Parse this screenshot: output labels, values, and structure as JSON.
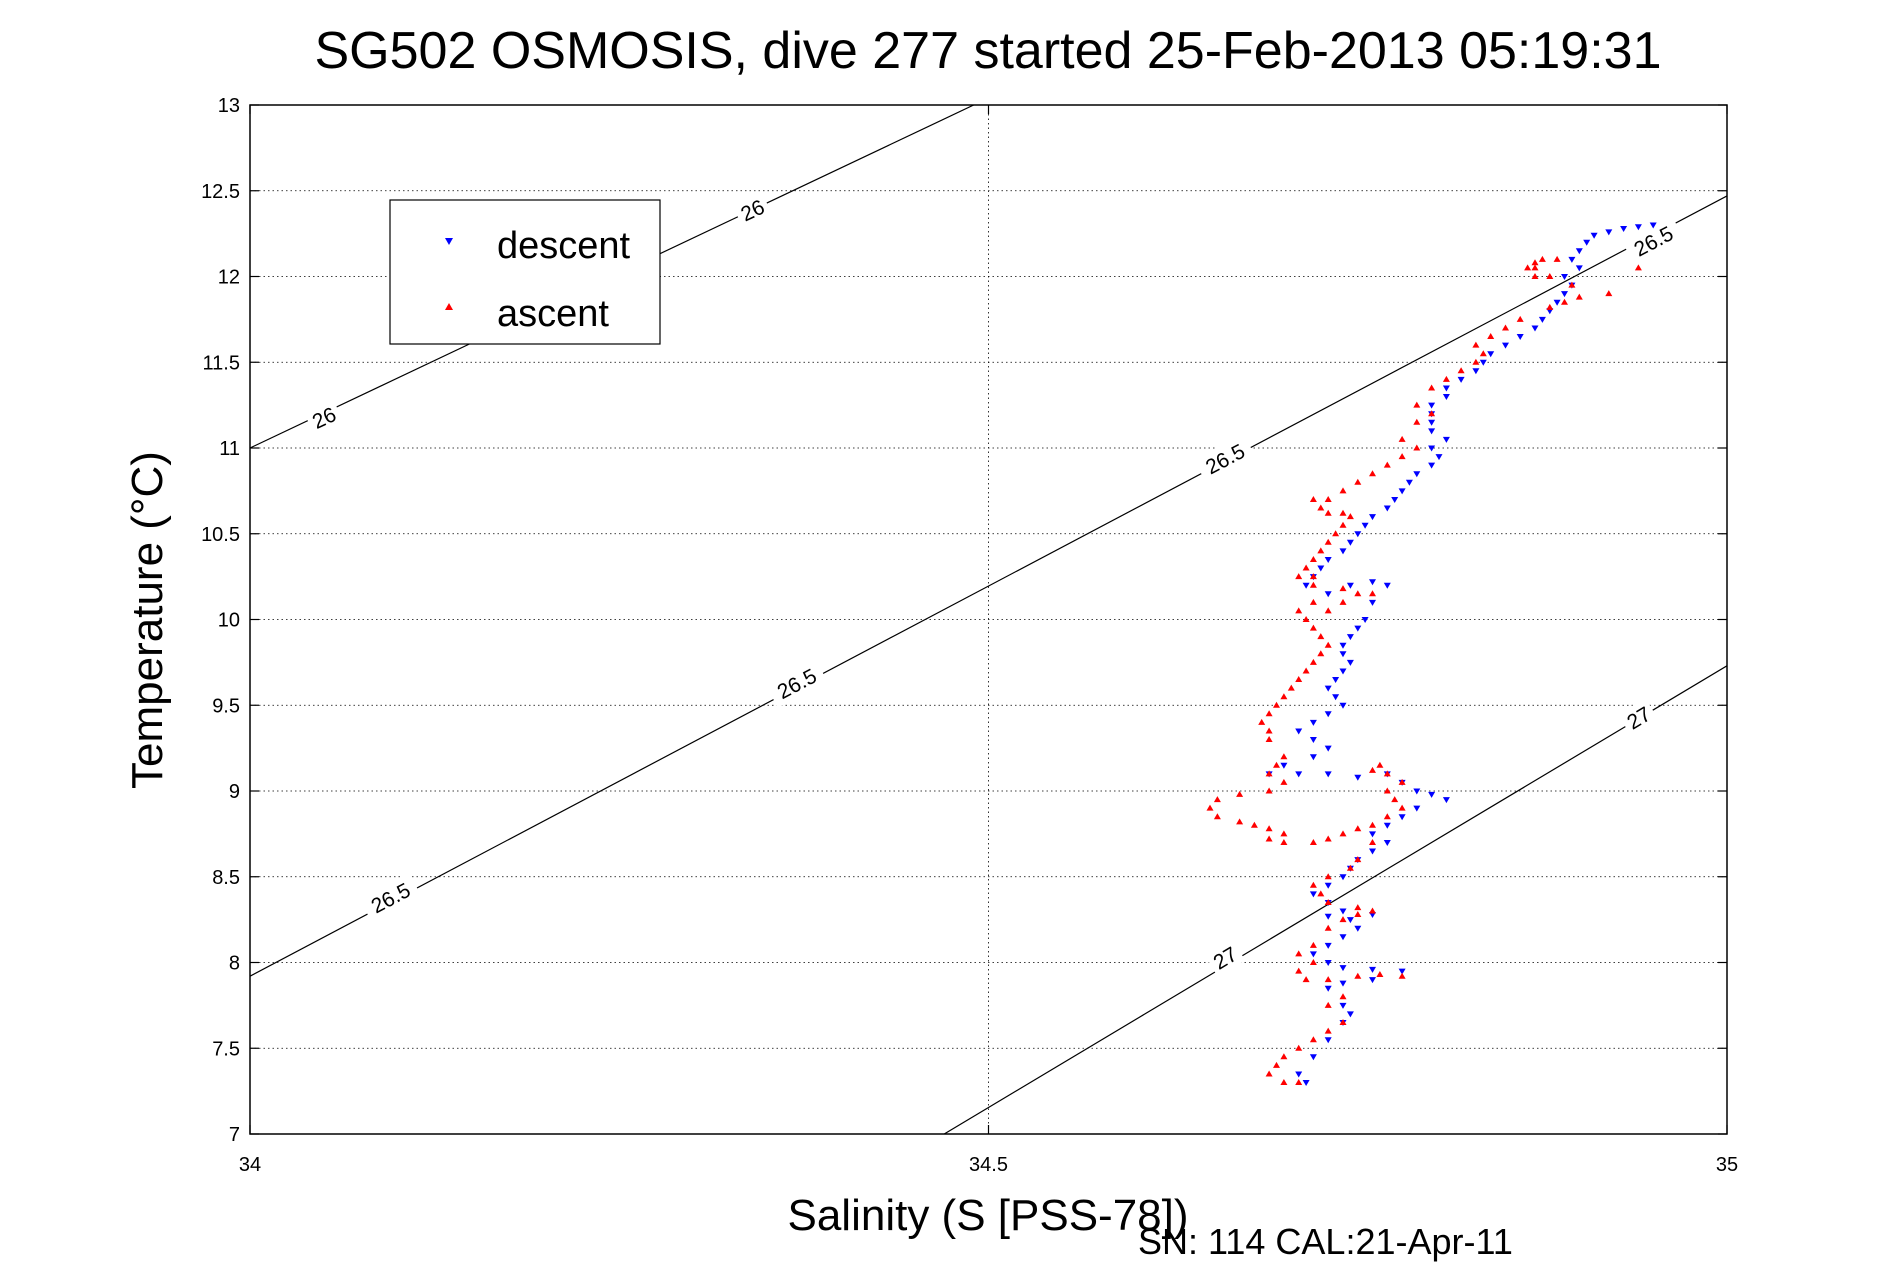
{
  "chart_data": {
    "type": "scatter",
    "title": "SG502 OSMOSIS, dive 277 started 25-Feb-2013 05:19:31",
    "xlabel": "Salinity (S [PSS-78])",
    "ylabel": "Temperature (°C)",
    "xlim": [
      34,
      35
    ],
    "ylim": [
      7,
      13
    ],
    "xticks": [
      "34",
      "34.5",
      "35"
    ],
    "yticks": [
      "7",
      "7.5",
      "8",
      "8.5",
      "9",
      "9.5",
      "10",
      "10.5",
      "11",
      "11.5",
      "12",
      "12.5",
      "13"
    ],
    "grid": true,
    "legend_position": "top-left",
    "footer": "SN: 114  CAL:21-Apr-11",
    "density_contours": [
      {
        "label": "26",
        "points": [
          [
            34.0,
            11.0
          ],
          [
            34.49,
            13.0
          ]
        ],
        "labels_at": [
          [
            34.05,
            11.18
          ],
          [
            34.34,
            12.39
          ]
        ]
      },
      {
        "label": "26.5",
        "points": [
          [
            34.0,
            7.92
          ],
          [
            35.0,
            12.47
          ]
        ],
        "labels_at": [
          [
            34.095,
            8.38
          ],
          [
            34.37,
            9.63
          ],
          [
            34.66,
            10.94
          ],
          [
            34.95,
            12.21
          ]
        ]
      },
      {
        "label": "27",
        "points": [
          [
            34.47,
            7.0
          ],
          [
            35.0,
            9.73
          ]
        ],
        "labels_at": [
          [
            34.66,
            8.03
          ],
          [
            34.94,
            9.43
          ]
        ]
      }
    ],
    "series": [
      {
        "name": "descent",
        "color": "#0000ff",
        "marker": "triangle-down",
        "points": [
          [
            34.95,
            12.3
          ],
          [
            34.94,
            12.29
          ],
          [
            34.93,
            12.28
          ],
          [
            34.92,
            12.26
          ],
          [
            34.91,
            12.24
          ],
          [
            34.905,
            12.2
          ],
          [
            34.9,
            12.15
          ],
          [
            34.895,
            12.1
          ],
          [
            34.9,
            12.05
          ],
          [
            34.89,
            12.0
          ],
          [
            34.895,
            11.95
          ],
          [
            34.89,
            11.9
          ],
          [
            34.885,
            11.85
          ],
          [
            34.88,
            11.8
          ],
          [
            34.875,
            11.75
          ],
          [
            34.87,
            11.7
          ],
          [
            34.86,
            11.65
          ],
          [
            34.85,
            11.6
          ],
          [
            34.84,
            11.55
          ],
          [
            34.835,
            11.5
          ],
          [
            34.83,
            11.45
          ],
          [
            34.82,
            11.4
          ],
          [
            34.81,
            11.35
          ],
          [
            34.81,
            11.3
          ],
          [
            34.8,
            11.25
          ],
          [
            34.8,
            11.2
          ],
          [
            34.8,
            11.15
          ],
          [
            34.8,
            11.1
          ],
          [
            34.81,
            11.05
          ],
          [
            34.8,
            11.0
          ],
          [
            34.805,
            10.95
          ],
          [
            34.8,
            10.9
          ],
          [
            34.79,
            10.85
          ],
          [
            34.785,
            10.8
          ],
          [
            34.78,
            10.75
          ],
          [
            34.775,
            10.7
          ],
          [
            34.77,
            10.65
          ],
          [
            34.76,
            10.6
          ],
          [
            34.755,
            10.55
          ],
          [
            34.75,
            10.5
          ],
          [
            34.745,
            10.45
          ],
          [
            34.74,
            10.4
          ],
          [
            34.73,
            10.35
          ],
          [
            34.725,
            10.3
          ],
          [
            34.72,
            10.25
          ],
          [
            34.715,
            10.2
          ],
          [
            34.73,
            10.15
          ],
          [
            34.745,
            10.2
          ],
          [
            34.76,
            10.22
          ],
          [
            34.77,
            10.2
          ],
          [
            34.76,
            10.1
          ],
          [
            34.755,
            10.0
          ],
          [
            34.75,
            9.95
          ],
          [
            34.745,
            9.9
          ],
          [
            34.74,
            9.85
          ],
          [
            34.74,
            9.8
          ],
          [
            34.745,
            9.75
          ],
          [
            34.74,
            9.7
          ],
          [
            34.735,
            9.65
          ],
          [
            34.73,
            9.6
          ],
          [
            34.735,
            9.55
          ],
          [
            34.74,
            9.5
          ],
          [
            34.73,
            9.45
          ],
          [
            34.72,
            9.4
          ],
          [
            34.71,
            9.35
          ],
          [
            34.72,
            9.3
          ],
          [
            34.73,
            9.25
          ],
          [
            34.72,
            9.2
          ],
          [
            34.7,
            9.15
          ],
          [
            34.69,
            9.1
          ],
          [
            34.71,
            9.1
          ],
          [
            34.73,
            9.1
          ],
          [
            34.75,
            9.08
          ],
          [
            34.77,
            9.1
          ],
          [
            34.78,
            9.05
          ],
          [
            34.79,
            9.0
          ],
          [
            34.8,
            8.98
          ],
          [
            34.81,
            8.95
          ],
          [
            34.79,
            8.9
          ],
          [
            34.78,
            8.85
          ],
          [
            34.77,
            8.8
          ],
          [
            34.76,
            8.75
          ],
          [
            34.77,
            8.7
          ],
          [
            34.76,
            8.65
          ],
          [
            34.75,
            8.6
          ],
          [
            34.745,
            8.55
          ],
          [
            34.74,
            8.5
          ],
          [
            34.73,
            8.45
          ],
          [
            34.72,
            8.4
          ],
          [
            34.73,
            8.35
          ],
          [
            34.74,
            8.3
          ],
          [
            34.73,
            8.27
          ],
          [
            34.745,
            8.25
          ],
          [
            34.76,
            8.28
          ],
          [
            34.75,
            8.2
          ],
          [
            34.74,
            8.15
          ],
          [
            34.73,
            8.1
          ],
          [
            34.72,
            8.05
          ],
          [
            34.73,
            8.0
          ],
          [
            34.74,
            7.97
          ],
          [
            34.76,
            7.96
          ],
          [
            34.78,
            7.95
          ],
          [
            34.76,
            7.9
          ],
          [
            34.74,
            7.88
          ],
          [
            34.73,
            7.85
          ],
          [
            34.74,
            7.75
          ],
          [
            34.745,
            7.7
          ],
          [
            34.74,
            7.65
          ],
          [
            34.73,
            7.55
          ],
          [
            34.72,
            7.45
          ],
          [
            34.71,
            7.35
          ],
          [
            34.715,
            7.3
          ]
        ]
      },
      {
        "name": "ascent",
        "color": "#ff0000",
        "marker": "triangle-up",
        "points": [
          [
            34.94,
            12.05
          ],
          [
            34.92,
            11.9
          ],
          [
            34.9,
            11.88
          ],
          [
            34.89,
            11.85
          ],
          [
            34.88,
            11.82
          ],
          [
            34.895,
            11.95
          ],
          [
            34.88,
            12.0
          ],
          [
            34.87,
            12.05
          ],
          [
            34.875,
            12.1
          ],
          [
            34.885,
            12.1
          ],
          [
            34.87,
            12.08
          ],
          [
            34.865,
            12.05
          ],
          [
            34.87,
            12.0
          ],
          [
            34.86,
            11.75
          ],
          [
            34.85,
            11.7
          ],
          [
            34.84,
            11.65
          ],
          [
            34.83,
            11.6
          ],
          [
            34.835,
            11.55
          ],
          [
            34.83,
            11.5
          ],
          [
            34.82,
            11.45
          ],
          [
            34.81,
            11.4
          ],
          [
            34.8,
            11.35
          ],
          [
            34.79,
            11.25
          ],
          [
            34.8,
            11.2
          ],
          [
            34.79,
            11.15
          ],
          [
            34.78,
            11.05
          ],
          [
            34.79,
            11.0
          ],
          [
            34.78,
            10.95
          ],
          [
            34.77,
            10.9
          ],
          [
            34.76,
            10.85
          ],
          [
            34.75,
            10.8
          ],
          [
            34.74,
            10.75
          ],
          [
            34.73,
            10.7
          ],
          [
            34.72,
            10.7
          ],
          [
            34.725,
            10.65
          ],
          [
            34.73,
            10.62
          ],
          [
            34.74,
            10.62
          ],
          [
            34.745,
            10.6
          ],
          [
            34.74,
            10.55
          ],
          [
            34.735,
            10.5
          ],
          [
            34.73,
            10.45
          ],
          [
            34.725,
            10.4
          ],
          [
            34.72,
            10.35
          ],
          [
            34.715,
            10.3
          ],
          [
            34.72,
            10.25
          ],
          [
            34.71,
            10.25
          ],
          [
            34.72,
            10.2
          ],
          [
            34.74,
            10.18
          ],
          [
            34.75,
            10.15
          ],
          [
            34.76,
            10.15
          ],
          [
            34.74,
            10.1
          ],
          [
            34.73,
            10.05
          ],
          [
            34.72,
            10.1
          ],
          [
            34.71,
            10.05
          ],
          [
            34.715,
            10.0
          ],
          [
            34.72,
            9.95
          ],
          [
            34.725,
            9.9
          ],
          [
            34.73,
            9.85
          ],
          [
            34.725,
            9.8
          ],
          [
            34.72,
            9.75
          ],
          [
            34.715,
            9.7
          ],
          [
            34.71,
            9.65
          ],
          [
            34.705,
            9.6
          ],
          [
            34.7,
            9.55
          ],
          [
            34.695,
            9.5
          ],
          [
            34.69,
            9.45
          ],
          [
            34.685,
            9.4
          ],
          [
            34.69,
            9.35
          ],
          [
            34.69,
            9.3
          ],
          [
            34.7,
            9.2
          ],
          [
            34.695,
            9.15
          ],
          [
            34.69,
            9.1
          ],
          [
            34.7,
            9.05
          ],
          [
            34.69,
            9.0
          ],
          [
            34.67,
            8.98
          ],
          [
            34.655,
            8.95
          ],
          [
            34.65,
            8.9
          ],
          [
            34.655,
            8.85
          ],
          [
            34.67,
            8.82
          ],
          [
            34.68,
            8.8
          ],
          [
            34.69,
            8.78
          ],
          [
            34.7,
            8.75
          ],
          [
            34.69,
            8.72
          ],
          [
            34.7,
            8.7
          ],
          [
            34.72,
            8.7
          ],
          [
            34.73,
            8.72
          ],
          [
            34.74,
            8.75
          ],
          [
            34.75,
            8.78
          ],
          [
            34.76,
            8.8
          ],
          [
            34.77,
            8.85
          ],
          [
            34.78,
            8.9
          ],
          [
            34.775,
            8.95
          ],
          [
            34.77,
            9.0
          ],
          [
            34.78,
            9.05
          ],
          [
            34.77,
            9.1
          ],
          [
            34.76,
            9.12
          ],
          [
            34.765,
            9.15
          ],
          [
            34.76,
            8.7
          ],
          [
            34.75,
            8.6
          ],
          [
            34.745,
            8.55
          ],
          [
            34.73,
            8.5
          ],
          [
            34.72,
            8.45
          ],
          [
            34.725,
            8.4
          ],
          [
            34.73,
            8.35
          ],
          [
            34.75,
            8.32
          ],
          [
            34.76,
            8.3
          ],
          [
            34.75,
            8.28
          ],
          [
            34.74,
            8.25
          ],
          [
            34.73,
            8.2
          ],
          [
            34.72,
            8.1
          ],
          [
            34.71,
            8.05
          ],
          [
            34.72,
            8.0
          ],
          [
            34.71,
            7.95
          ],
          [
            34.715,
            7.9
          ],
          [
            34.73,
            7.9
          ],
          [
            34.75,
            7.92
          ],
          [
            34.765,
            7.93
          ],
          [
            34.78,
            7.92
          ],
          [
            34.74,
            7.8
          ],
          [
            34.73,
            7.75
          ],
          [
            34.74,
            7.65
          ],
          [
            34.73,
            7.6
          ],
          [
            34.72,
            7.55
          ],
          [
            34.71,
            7.5
          ],
          [
            34.7,
            7.45
          ],
          [
            34.695,
            7.4
          ],
          [
            34.69,
            7.35
          ],
          [
            34.7,
            7.3
          ],
          [
            34.71,
            7.3
          ]
        ]
      }
    ]
  }
}
